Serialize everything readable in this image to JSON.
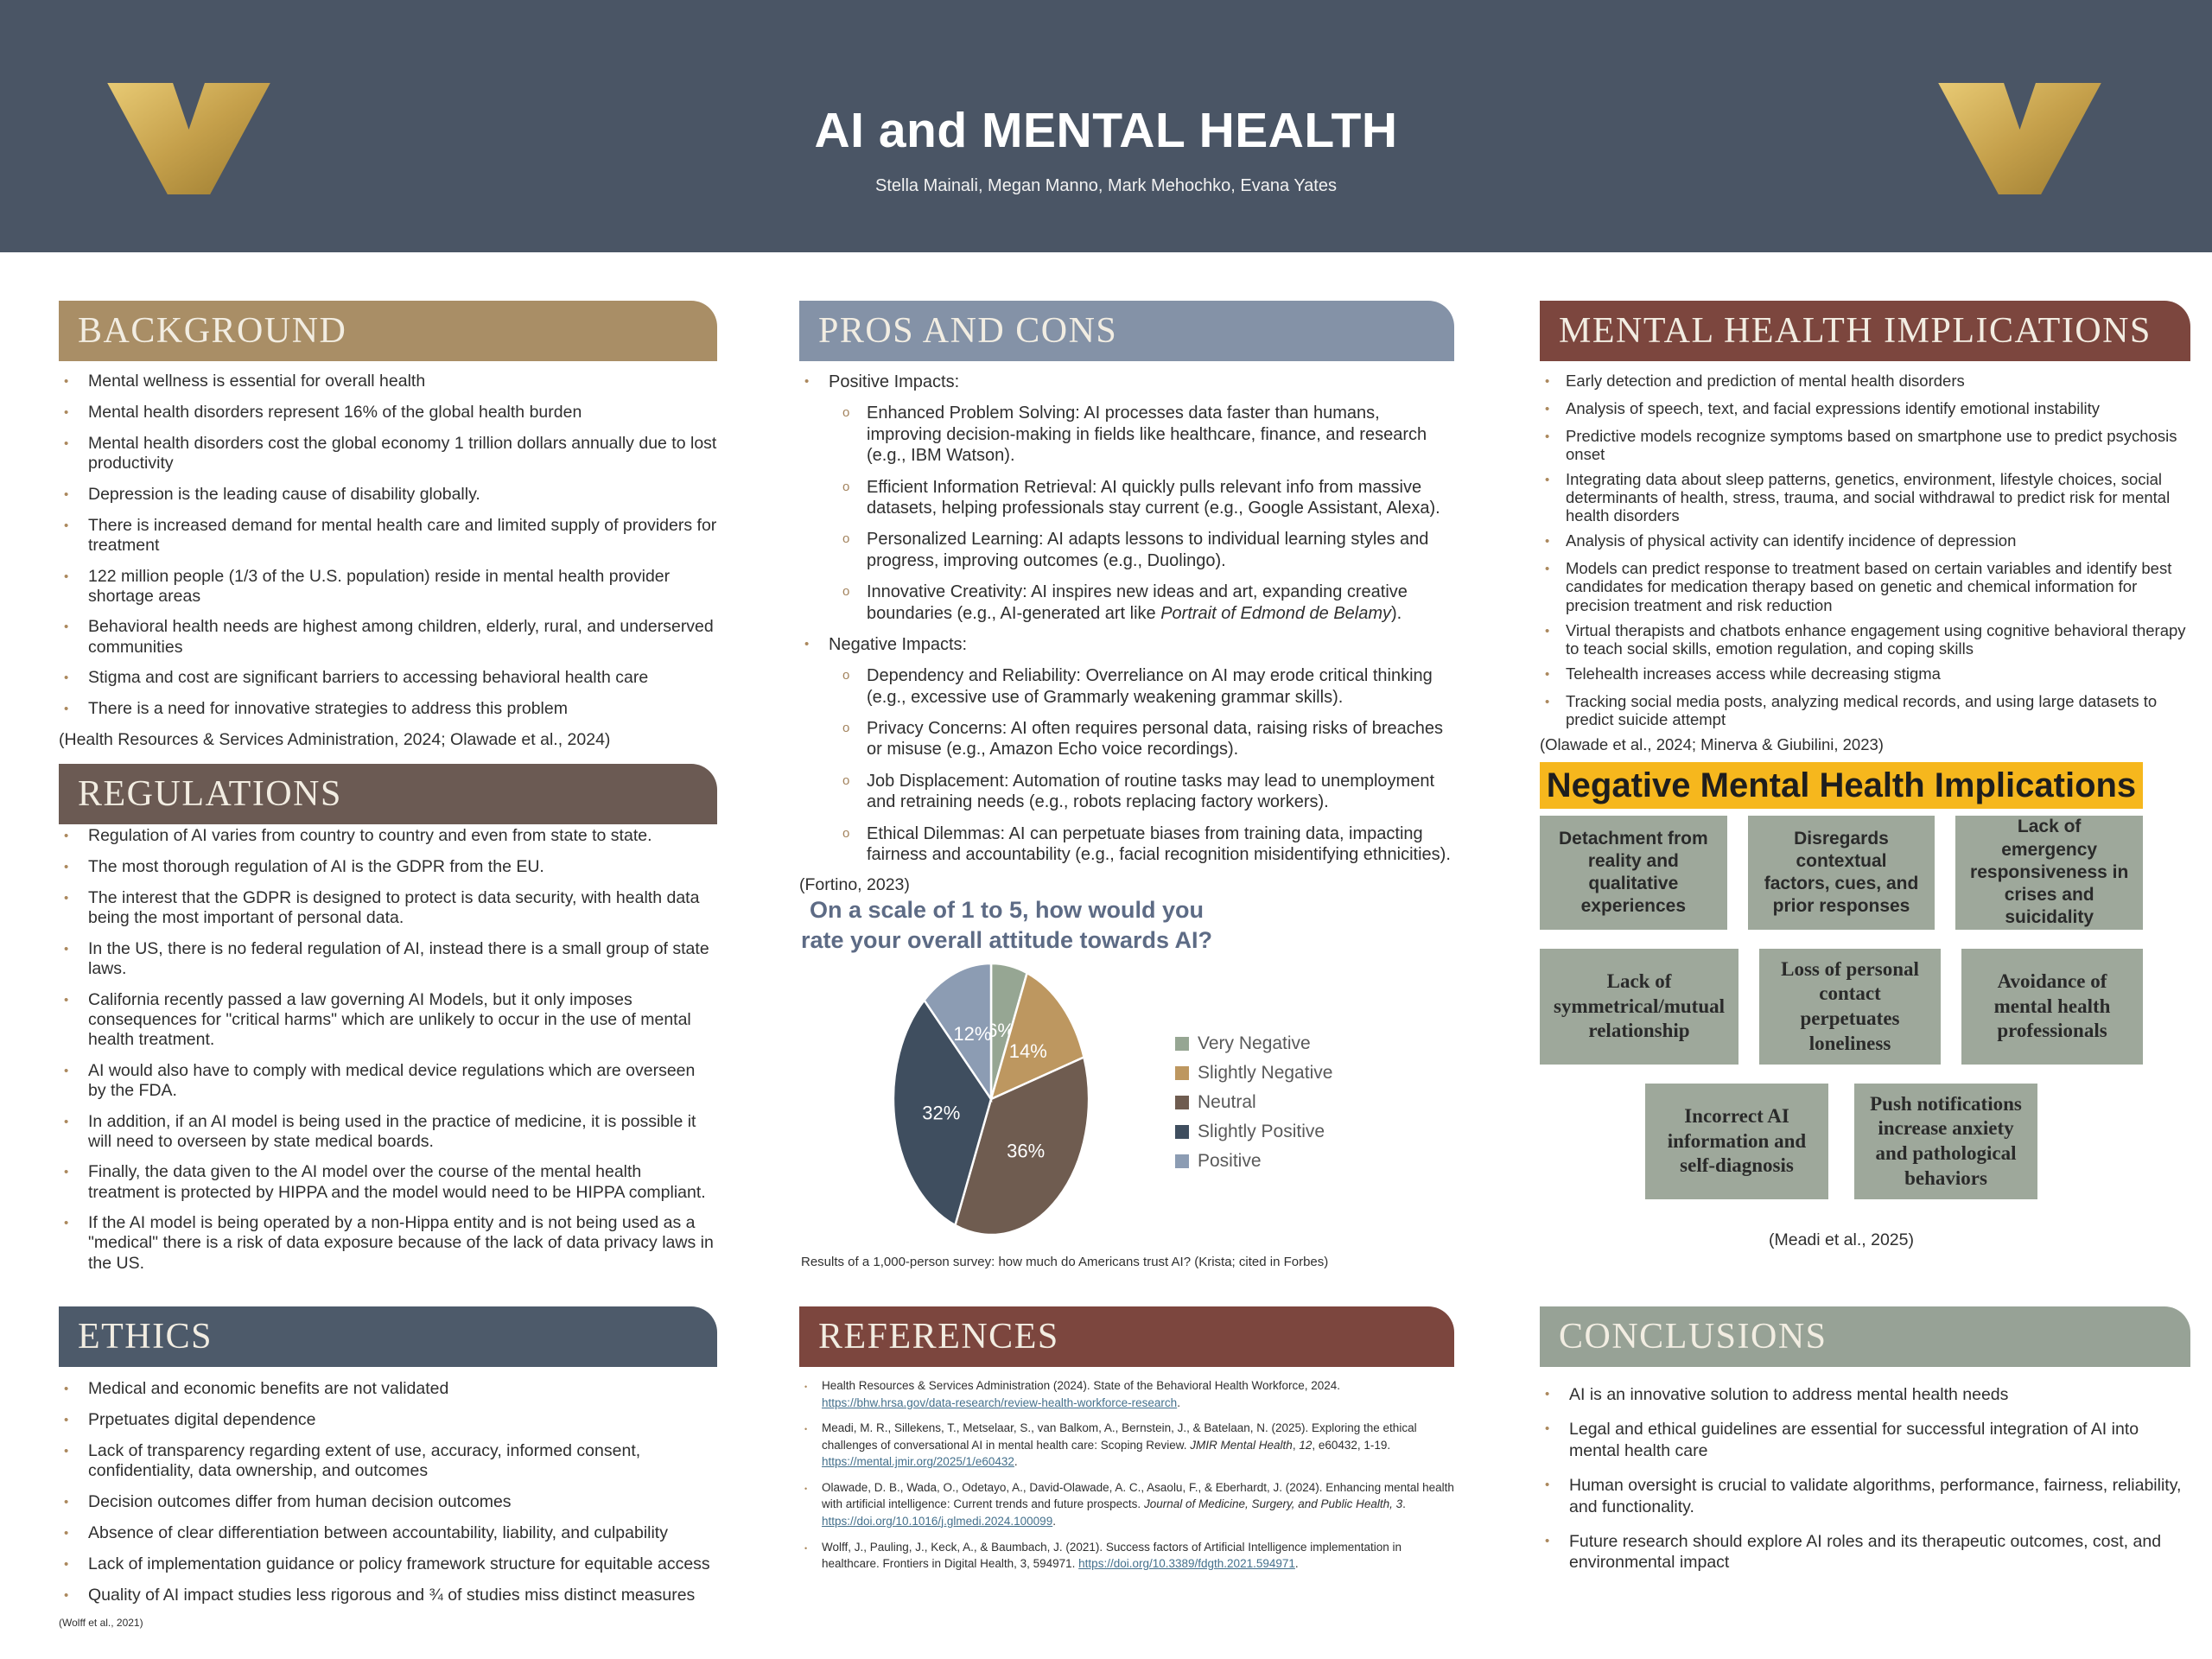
{
  "header": {
    "title": "AI and MENTAL HEALTH",
    "authors": "Stella Mainali, Megan Manno, Mark Mehochko, Evana Yates",
    "logo_icon": "vanderbilt-v-logo",
    "banner_color": "#4a5565",
    "logo_gold": "#c5a04b"
  },
  "sections": {
    "background": {
      "title": "BACKGROUND",
      "accent_color": "#a98e66",
      "bullets": [
        "Mental wellness is essential for overall health",
        "Mental health disorders represent 16% of the global health burden",
        "Mental health disorders cost the global economy 1 trillion dollars annually due to lost productivity",
        "Depression is the leading cause of disability globally.",
        "There is increased demand for mental health care and limited supply of providers for treatment",
        "122 million people (1/3 of the U.S. population) reside in  mental health provider shortage areas",
        "Behavioral health needs are highest among children, elderly, rural, and underserved communities",
        "Stigma and cost are significant barriers to accessing behavioral health care",
        "There is a need for innovative strategies to address this problem"
      ],
      "citation": "(Health Resources & Services Administration, 2024; Olawade et al., 2024)"
    },
    "regulations": {
      "title": "REGULATIONS",
      "accent_color": "#6b5a53",
      "bullets": [
        "Regulation of AI varies from country to country and even from state to state.",
        "The most thorough regulation of AI is the GDPR from the EU.",
        "The interest that the GDPR  is designed to protect is data security, with health data being the most important of personal data.",
        "In the US, there is no federal regulation of AI, instead there is a small group of state laws.",
        "California recently passed a law governing AI Models, but it only imposes consequences for \"critical harms\" which are unlikely to occur in the use of mental health treatment.",
        "AI would also have to comply with medical device regulations which are overseen by the FDA.",
        "In addition, if an AI model is being used in the practice of medicine, it is possible it will need to overseen by state medical boards.",
        "Finally, the data given to the AI model over the course of the mental health treatment is protected by HIPPA and the model would need to be HIPPA compliant.",
        "If the AI model is being operated by a non-Hippa entity and is not being used as a \"medical\" there is a risk of data exposure because of the lack of data privacy laws in the US."
      ]
    },
    "ethics": {
      "title": "ETHICS",
      "accent_color": "#4d5a6a",
      "bullets": [
        "Medical and economic benefits are not validated",
        "Prpetuates digital dependence",
        "Lack of transparency regarding extent of use, accuracy, informed consent, confidentiality, data ownership, and outcomes",
        "Decision outcomes differ from human decision outcomes",
        "Absence of clear differentiation between accountability, liability, and culpability",
        "Lack of implementation guidance or policy framework structure for equitable access",
        "Quality of AI impact studies less rigorous and ¾ of studies miss distinct measures"
      ],
      "citation": "(Wolff et al., 2021)"
    },
    "pros_cons": {
      "title": "PROS AND CONS",
      "accent_color": "#8492a7",
      "groups": [
        {
          "label": "Positive Impacts:",
          "items": [
            [
              {
                "t": "Enhanced Problem Solving: AI processes data faster than humans, improving decision-making in fields like healthcare, finance, and research (e.g., IBM Watson)."
              }
            ],
            [
              {
                "t": "Efficient Information Retrieval: AI quickly pulls relevant info from massive datasets, helping professionals stay current (e.g., Google Assistant, Alexa)."
              }
            ],
            [
              {
                "t": "Personalized Learning: AI adapts lessons to individual learning styles and progress, improving outcomes (e.g., Duolingo)."
              }
            ],
            [
              {
                "t": "Innovative Creativity: AI inspires new ideas and art, expanding creative boundaries (e.g., AI-generated art like "
              },
              {
                "t": "Portrait of Edmond de Belamy",
                "s": "i"
              },
              {
                "t": ")."
              }
            ]
          ]
        },
        {
          "label": "Negative Impacts:",
          "items": [
            [
              {
                "t": "Dependency and Reliability: Overreliance on AI may erode critical thinking (e.g., excessive use of Grammarly weakening grammar skills)."
              }
            ],
            [
              {
                "t": "Privacy Concerns: AI often requires personal data, raising risks of breaches or misuse (e.g., Amazon Echo voice recordings)."
              }
            ],
            [
              {
                "t": "Job Displacement: Automation of routine tasks may lead to unemployment and retraining needs (e.g., robots replacing factory workers)."
              }
            ],
            [
              {
                "t": "Ethical Dilemmas: AI can perpetuate biases from training data, impacting fairness and accountability (e.g., facial recognition misidentifying ethnicities)."
              }
            ]
          ]
        }
      ],
      "citation": "(Fortino, 2023)"
    },
    "mental_health": {
      "title": "MENTAL HEALTH IMPLICATIONS",
      "accent_color": "#7c463e",
      "bullets": [
        "Early detection and prediction of mental health disorders",
        "Analysis of speech, text, and facial expressions identify emotional  instability",
        "Predictive models recognize symptoms based on smartphone use to predict psychosis onset",
        "Integrating data about sleep  patterns, genetics, environment, lifestyle choices, social determinants of health, stress, trauma, and social withdrawal to predict risk for mental health disorders",
        "Analysis of physical activity  can identify incidence of depression",
        "Models can predict response to treatment based on certain variables and  identify best candidates for medication therapy based on genetic and chemical information for precision treatment and risk reduction",
        "Virtual therapists and chatbots enhance engagement  using cognitive behavioral therapy to teach social skills, emotion regulation, and coping skills",
        "Telehealth  increases access  while decreasing stigma",
        "Tracking social media posts, analyzing medical records, and using large datasets to predict suicide attempt"
      ],
      "citation": "(Olawade et al., 2024;  Minerva & Giubilini, 2023)"
    },
    "negative_implications": {
      "banner": "Negative Mental Health Implications",
      "banner_color": "#f6b71d",
      "box_color": "#9ea89b",
      "boxes_row1": [
        "Detachment from reality and qualitative experiences",
        "Disregards contextual factors, cues, and prior responses",
        "Lack of emergency responsiveness in crises and suicidality"
      ],
      "boxes_row2": [
        "Lack of symmetrical/mutual relationship",
        "Loss of personal contact perpetuates loneliness",
        "Avoidance of mental health professionals"
      ],
      "boxes_row3": [
        "Incorrect AI information and self-diagnosis",
        "Push notifications increase anxiety and pathological behaviors"
      ],
      "citation": "(Meadi et al., 2025)"
    },
    "references": {
      "title": "REFERENCES",
      "accent_color": "#7c463e",
      "items": [
        [
          {
            "t": "Health Resources & Services Administration (2024). State of the Behavioral Health Workforce, 2024. "
          },
          {
            "t": "https://bhw.hrsa.gov/data-research/review-health-workforce-research",
            "s": "u"
          },
          {
            "t": "."
          }
        ],
        [
          {
            "t": "Meadi, M. R., Sillekens, T., Metselaar, S., van Balkom, A., Bernstein, J., & Batelaan, N. (2025). Exploring the ethical challenges of conversational AI in mental health care: Scoping Review. "
          },
          {
            "t": "JMIR Mental Health",
            "s": "i"
          },
          {
            "t": ", "
          },
          {
            "t": "12",
            "s": "i"
          },
          {
            "t": ", e60432, 1-19. "
          },
          {
            "t": "https://mental.jmir.org/2025/1/e60432",
            "s": "u"
          },
          {
            "t": "."
          }
        ],
        [
          {
            "t": "Olawade, D. B., Wada, O., Odetayo, A., David-Olawade, A. C., Asaolu, F., & Eberhardt, J. (2024). Enhancing mental health with artificial intelligence: Current trends and future prospects. "
          },
          {
            "t": "Journal of Medicine, Surgery, and Public Health, 3",
            "s": "i"
          },
          {
            "t": ". "
          },
          {
            "t": "https://doi.org/10.1016/j.glmedi.2024.100099",
            "s": "u"
          },
          {
            "t": "."
          }
        ],
        [
          {
            "t": "Wolff, J., Pauling, J., Keck, A., & Baumbach, J. (2021). Success factors of Artificial Intelligence implementation in healthcare. Frontiers in Digital Health, 3, 594971. "
          },
          {
            "t": "https://doi.org/10.3389/fdgth.2021.594971",
            "s": "u"
          },
          {
            "t": "."
          }
        ]
      ]
    },
    "conclusions": {
      "title": "CONCLUSIONS",
      "accent_color": "#97a296",
      "bullets": [
        "AI is an innovative solution to address mental health needs",
        "Legal and ethical guidelines are essential for successful integration of AI into mental health care",
        "Human oversight is crucial to validate algorithms, performance, fairness, reliability, and functionality.",
        "Future research should explore AI roles and its therapeutic outcomes, cost, and environmental impact"
      ]
    }
  },
  "chart_data": {
    "type": "pie",
    "title": "On a scale of 1 to 5, how would you rate your overall attitude towards AI?",
    "labels": [
      "Very Negative",
      "Slightly Negative",
      "Neutral",
      "Slightly Positive",
      "Positive"
    ],
    "values": [
      6,
      14,
      36,
      32,
      12
    ],
    "colors": [
      "#96a693",
      "#bd9760",
      "#6f5c50",
      "#3f4e5f",
      "#8c9cb3"
    ],
    "legend_position": "right",
    "start_angle_deg": 0,
    "direction": "clockwise",
    "caption": "Results of a 1,000-person survey: how much do Americans trust AI? (Krista; cited in Forbes)"
  }
}
